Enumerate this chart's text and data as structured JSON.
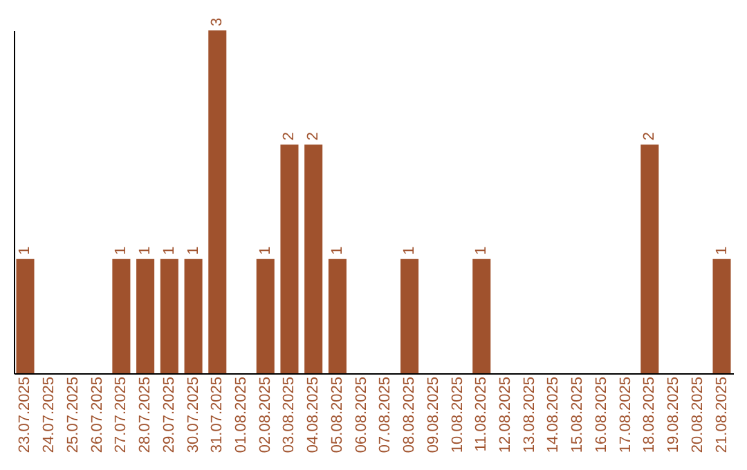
{
  "chart_data": {
    "type": "bar",
    "categories": [
      "23.07.2025",
      "24.07.2025",
      "25.07.2025",
      "26.07.2025",
      "27.07.2025",
      "28.07.2025",
      "29.07.2025",
      "30.07.2025",
      "31.07.2025",
      "01.08.2025",
      "02.08.2025",
      "03.08.2025",
      "04.08.2025",
      "05.08.2025",
      "06.08.2025",
      "07.08.2025",
      "08.08.2025",
      "09.08.2025",
      "10.08.2025",
      "11.08.2025",
      "12.08.2025",
      "13.08.2025",
      "14.08.2025",
      "15.08.2025",
      "16.08.2025",
      "17.08.2025",
      "18.08.2025",
      "19.08.2025",
      "20.08.2025",
      "21.08.2025"
    ],
    "values": [
      1,
      null,
      null,
      null,
      1,
      1,
      1,
      1,
      3,
      null,
      1,
      2,
      2,
      1,
      null,
      null,
      1,
      null,
      null,
      1,
      null,
      null,
      null,
      null,
      null,
      null,
      2,
      null,
      null,
      1
    ],
    "color": "#a0522d",
    "data_labels": true,
    "tick_labels": "x",
    "grid": false
  }
}
